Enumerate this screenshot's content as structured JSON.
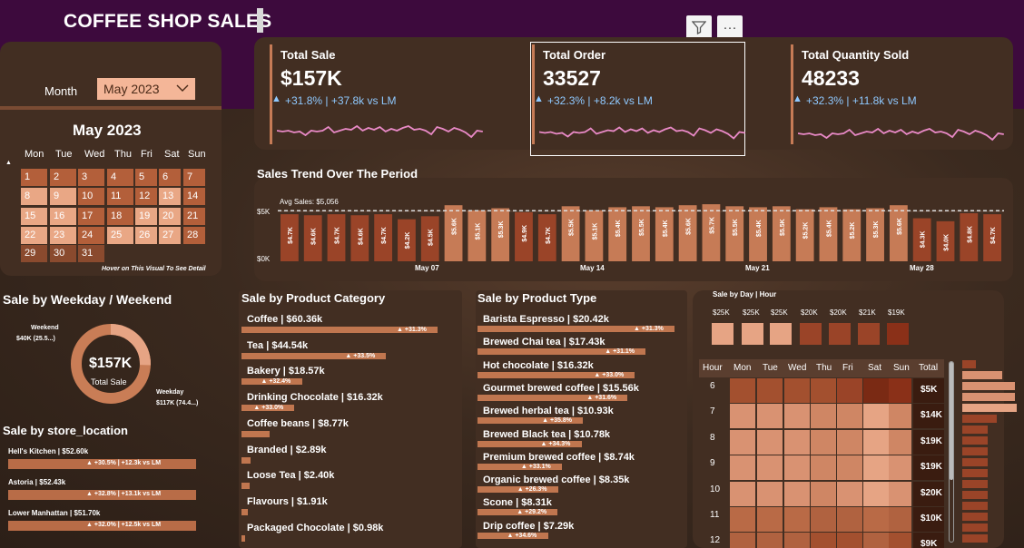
{
  "header": {
    "title": "COFFEE SHOP SALES",
    "filter_icon": "filter-icon",
    "more_icon": "more-options-icon",
    "more_label": "···"
  },
  "month_filter": {
    "label": "Month",
    "value": "May 2023"
  },
  "calendar": {
    "title": "May 2023",
    "weekdays": [
      "Mon",
      "Tue",
      "Wed",
      "Thu",
      "Fri",
      "Sat",
      "Sun"
    ],
    "days": [
      "1",
      "2",
      "3",
      "4",
      "5",
      "6",
      "7",
      "8",
      "9",
      "10",
      "11",
      "12",
      "13",
      "14",
      "15",
      "16",
      "17",
      "18",
      "19",
      "20",
      "21",
      "22",
      "23",
      "24",
      "25",
      "26",
      "27",
      "28",
      "29",
      "30",
      "31"
    ],
    "hint": "Hover on This Visual To See Detail"
  },
  "kpis": [
    {
      "label": "Total Sale",
      "value": "$157K",
      "delta": "+31.8% | +37.8k vs LM"
    },
    {
      "label": "Total Order",
      "value": "33527",
      "delta": "+32.3% | +8.2k vs LM"
    },
    {
      "label": "Total Quantity Sold",
      "value": "48233",
      "delta": "+32.3% | +11.8k vs LM"
    }
  ],
  "trend": {
    "title": "Sales Trend Over The Period",
    "avg_label": "Avg Sales: $5,056",
    "y_top": "$5K",
    "y_bottom": "$0K",
    "x_labels": [
      "May 07",
      "May 14",
      "May 21",
      "May 28"
    ]
  },
  "chart_data": {
    "type": "bar",
    "categories": [
      "1",
      "2",
      "3",
      "4",
      "5",
      "6",
      "7",
      "8",
      "9",
      "10",
      "11",
      "12",
      "13",
      "14",
      "15",
      "16",
      "17",
      "18",
      "19",
      "20",
      "21",
      "22",
      "23",
      "24",
      "25",
      "26",
      "27",
      "28",
      "29",
      "30",
      "31"
    ],
    "values": [
      4.7,
      4.6,
      4.7,
      4.6,
      4.7,
      4.2,
      4.5,
      5.6,
      5.1,
      5.3,
      4.9,
      4.7,
      5.5,
      5.1,
      5.4,
      5.5,
      5.4,
      5.6,
      5.7,
      5.5,
      5.4,
      5.5,
      5.2,
      5.4,
      5.2,
      5.3,
      5.6,
      4.3,
      4.0,
      4.8,
      4.7
    ],
    "labels": [
      "$4.7K",
      "$4.6K",
      "$4.7K",
      "$4.6K",
      "$4.7K",
      "$4.2K",
      "$4.5K",
      "$5.6K",
      "$5.1K",
      "$5.3K",
      "$4.9K",
      "$4.7K",
      "$5.5K",
      "$5.1K",
      "$5.4K",
      "$5.5K",
      "$5.4K",
      "$5.6K",
      "$5.7K",
      "$5.5K",
      "$5.4K",
      "$5.5K",
      "$5.2K",
      "$5.4K",
      "$5.2K",
      "$5.3K",
      "$5.6K",
      "$4.3K",
      "$4.0K",
      "$4.8K",
      "$4.7K"
    ],
    "avg": 5.056,
    "ylim": [
      0,
      5.8
    ]
  },
  "weekday_weekend": {
    "title": "Sale by Weekday / Weekend",
    "center_value": "$157K",
    "center_label": "Total Sale",
    "weekend_label": "Weekend",
    "weekend_value": "$40K (25.5...)",
    "weekday_label": "Weekday",
    "weekday_value": "$117K (74.4...)",
    "weekend_share": 25.5
  },
  "store_location": {
    "title": "Sale by store_location",
    "items": [
      {
        "label": "Hell's Kitchen | $52.60k",
        "delta": "▲ +30.5% | +12.3k vs LM",
        "value": 52.6
      },
      {
        "label": "Astoria | $52.43k",
        "delta": "▲ +32.8% | +13.1k vs LM",
        "value": 52.43
      },
      {
        "label": "Lower Manhattan | $51.70k",
        "delta": "▲ +32.0% | +12.5k vs LM",
        "value": 51.7
      }
    ]
  },
  "category": {
    "title": "Sale by Product Category",
    "items": [
      {
        "label": "Coffee | $60.36k",
        "delta": "▲ +31.3%",
        "value": 60.36
      },
      {
        "label": "Tea | $44.54k",
        "delta": "▲ +33.5%",
        "value": 44.54
      },
      {
        "label": "Bakery | $18.57k",
        "delta": "▲ +32.4%",
        "value": 18.57
      },
      {
        "label": "Drinking Chocolate | $16.32k",
        "delta": "▲ +33.0%",
        "value": 16.32
      },
      {
        "label": "Coffee beans | $8.77k",
        "delta": "",
        "value": 8.77
      },
      {
        "label": "Branded | $2.89k",
        "delta": "",
        "value": 2.89
      },
      {
        "label": "Loose Tea | $2.40k",
        "delta": "",
        "value": 2.4
      },
      {
        "label": "Flavours | $1.91k",
        "delta": "",
        "value": 1.91
      },
      {
        "label": "Packaged Chocolate | $0.98k",
        "delta": "",
        "value": 0.98
      }
    ]
  },
  "product_type": {
    "title": "Sale by Product Type",
    "items": [
      {
        "label": "Barista Espresso | $20.42k",
        "delta": "▲ +31.3%",
        "value": 20.42
      },
      {
        "label": "Brewed Chai tea | $17.43k",
        "delta": "▲ +31.1%",
        "value": 17.43
      },
      {
        "label": "Hot chocolate | $16.32k",
        "delta": "▲ +33.0%",
        "value": 16.32
      },
      {
        "label": "Gourmet brewed coffee | $15.56k",
        "delta": "▲ +31.6%",
        "value": 15.56
      },
      {
        "label": "Brewed herbal tea | $10.93k",
        "delta": "▲ +35.8%",
        "value": 10.93
      },
      {
        "label": "Brewed Black tea | $10.78k",
        "delta": "▲ +34.3%",
        "value": 10.78
      },
      {
        "label": "Premium brewed coffee | $8.74k",
        "delta": "▲ +33.1%",
        "value": 8.74
      },
      {
        "label": "Organic brewed coffee | $8.35k",
        "delta": "▲ +26.3%",
        "value": 8.35
      },
      {
        "label": "Scone | $8.31k",
        "delta": "▲ +29.2%",
        "value": 8.31
      },
      {
        "label": "Drip coffee | $7.29k",
        "delta": "▲ +34.6%",
        "value": 7.29
      }
    ]
  },
  "heatmap": {
    "title": "Sale by Day | Hour",
    "day_totals": [
      "$25K",
      "$25K",
      "$25K",
      "$20K",
      "$20K",
      "$21K",
      "$19K"
    ],
    "columns": [
      "Hour",
      "Mon",
      "Tue",
      "Wed",
      "Thu",
      "Fri",
      "Sat",
      "Sun",
      "Total"
    ],
    "rows": [
      {
        "hour": "6",
        "total": "$5K"
      },
      {
        "hour": "7",
        "total": "$14K"
      },
      {
        "hour": "8",
        "total": "$19K"
      },
      {
        "hour": "9",
        "total": "$19K"
      },
      {
        "hour": "10",
        "total": "$20K"
      },
      {
        "hour": "11",
        "total": "$10K"
      },
      {
        "hour": "12",
        "total": "$9K"
      }
    ]
  },
  "colors": {
    "accent": "#c67b56",
    "panel": "#422e22",
    "header": "#3d0a3d",
    "delta_blue": "#8fc9ff",
    "sparkline": "#e889c6"
  }
}
